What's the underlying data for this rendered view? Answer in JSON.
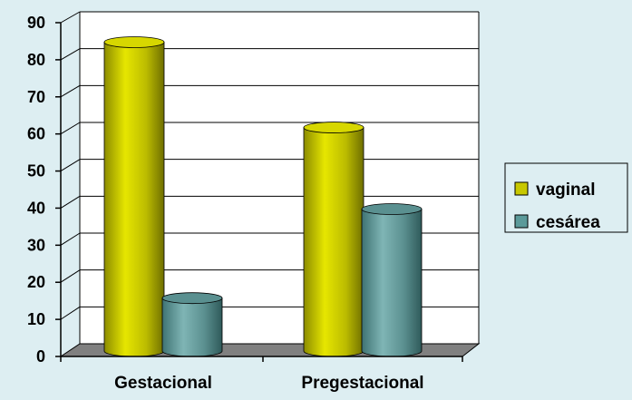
{
  "chart_data": {
    "type": "bar",
    "style": "3d-cylinder",
    "categories": [
      "Gestacional",
      "Pregestacional"
    ],
    "series": [
      {
        "name": "vaginal",
        "values": [
          84,
          61
        ],
        "color": "#c8c800"
      },
      {
        "name": "cesárea",
        "values": [
          15,
          39
        ],
        "color": "#5b9a9a"
      }
    ],
    "ylim": [
      0,
      90
    ],
    "yticks": [
      0,
      10,
      20,
      30,
      40,
      50,
      60,
      70,
      80,
      90
    ],
    "grid": true,
    "legend_position": "right",
    "title": "",
    "xlabel": "",
    "ylabel": ""
  },
  "colors": {
    "background": "#ddeef2",
    "plot_back_wall": "#ffffff",
    "floor": "#808080"
  }
}
